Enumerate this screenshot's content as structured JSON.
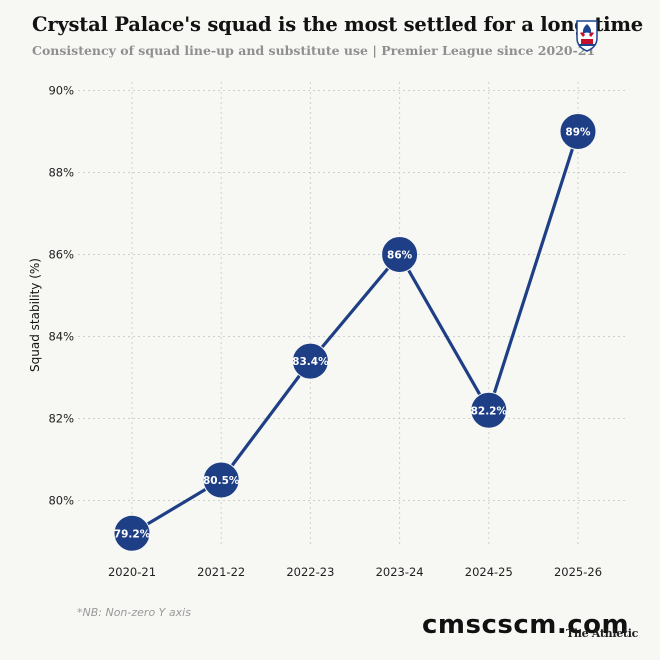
{
  "chart_data": {
    "type": "line",
    "title": "Crystal Palace's squad is the most settled for a long time",
    "subtitle": "Consistency of squad line-up and substitute use | Premier League since 2020-21",
    "ylabel": "Squad stability (%)",
    "categories": [
      "2020-21",
      "2021-22",
      "2022-23",
      "2023-24",
      "2024-25",
      "2025-26"
    ],
    "values": [
      79.2,
      80.5,
      83.4,
      86,
      82.2,
      89
    ],
    "data_labels": [
      "79.2%",
      "80.5%",
      "83.4%",
      "86%",
      "82.2%",
      "89%"
    ],
    "y_ticks": [
      80,
      82,
      84,
      86,
      88,
      90
    ],
    "y_tick_labels": [
      "80%",
      "82%",
      "84%",
      "86%",
      "88%",
      "90%"
    ],
    "ylim": [
      79,
      90
    ],
    "grid": true,
    "line_color": "#1e3f86",
    "marker_color": "#1e3f86",
    "note": "*NB: Non-zero Y axis",
    "credit": "The Athletic"
  },
  "watermark": "cmscscm.com",
  "crest_icon": "crystal-palace-crest-icon"
}
